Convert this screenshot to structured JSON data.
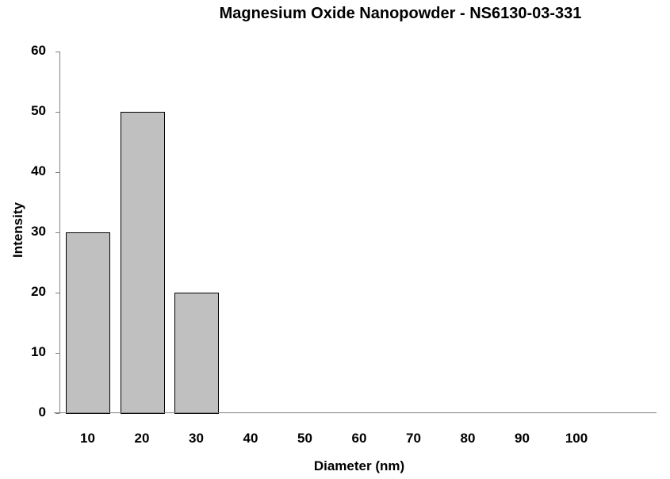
{
  "chart_data": {
    "type": "bar",
    "title": "Magnesium Oxide Nanopowder - NS6130-03-331",
    "xlabel": "Diameter (nm)",
    "ylabel": "Intensity",
    "categories": [
      "10",
      "20",
      "30",
      "40",
      "50",
      "60",
      "70",
      "80",
      "90",
      "100"
    ],
    "values": [
      30,
      50,
      20,
      0,
      0,
      0,
      0,
      0,
      0,
      0
    ],
    "y_ticks": [
      "0",
      "10",
      "20",
      "30",
      "40",
      "50",
      "60"
    ],
    "ylim": [
      0,
      60
    ],
    "grid": false,
    "legend": null,
    "bar_color": "#c0c0c0",
    "bar_edge_color": "#000000",
    "axis_color": "#808080"
  }
}
